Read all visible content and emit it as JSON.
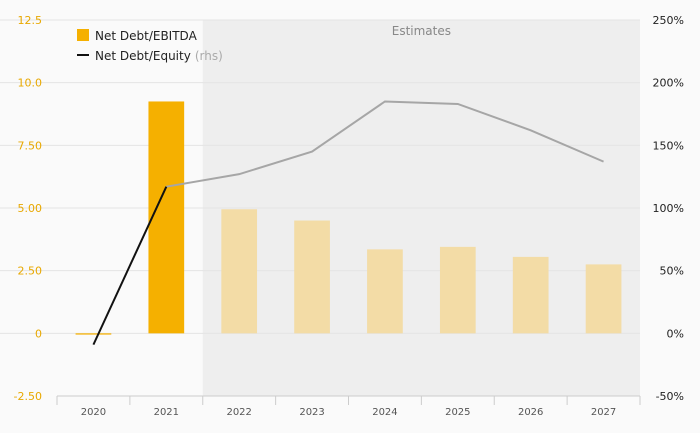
{
  "chart_data": {
    "type": "bar",
    "categories": [
      "2020",
      "2021",
      "2022",
      "2023",
      "2024",
      "2025",
      "2026",
      "2027"
    ],
    "estimates_label": "Estimates",
    "estimates_start_index": 2,
    "series": [
      {
        "name": "Net Debt/EBITDA",
        "type": "bar",
        "axis": "left",
        "color": "#f5b000",
        "estimate_color": "#f3dca6",
        "values": [
          -0.05,
          9.25,
          4.95,
          4.5,
          3.35,
          3.45,
          3.05,
          2.75
        ]
      },
      {
        "name": "Net Debt/Equity",
        "name_suffix": "(rhs)",
        "type": "line",
        "axis": "right",
        "color": "#111111",
        "estimate_color": "#a6a6a6",
        "values": [
          -9,
          117,
          127,
          145,
          185,
          183,
          162,
          137
        ]
      }
    ],
    "y_left": {
      "min": -2.5,
      "max": 12.5,
      "ticks": [
        -2.5,
        0,
        2.5,
        5.0,
        7.5,
        10.0,
        12.5
      ],
      "tick_labels": [
        "-2.50",
        "0",
        "2.50",
        "5.00",
        "7.50",
        "10.0",
        "12.5"
      ]
    },
    "y_right": {
      "min": -50,
      "max": 250,
      "ticks": [
        -50,
        0,
        50,
        100,
        150,
        200,
        250
      ],
      "tick_labels": [
        "-50%",
        "0%",
        "50%",
        "100%",
        "150%",
        "200%",
        "250%"
      ]
    },
    "grid": true,
    "legend_position": "top-left"
  }
}
